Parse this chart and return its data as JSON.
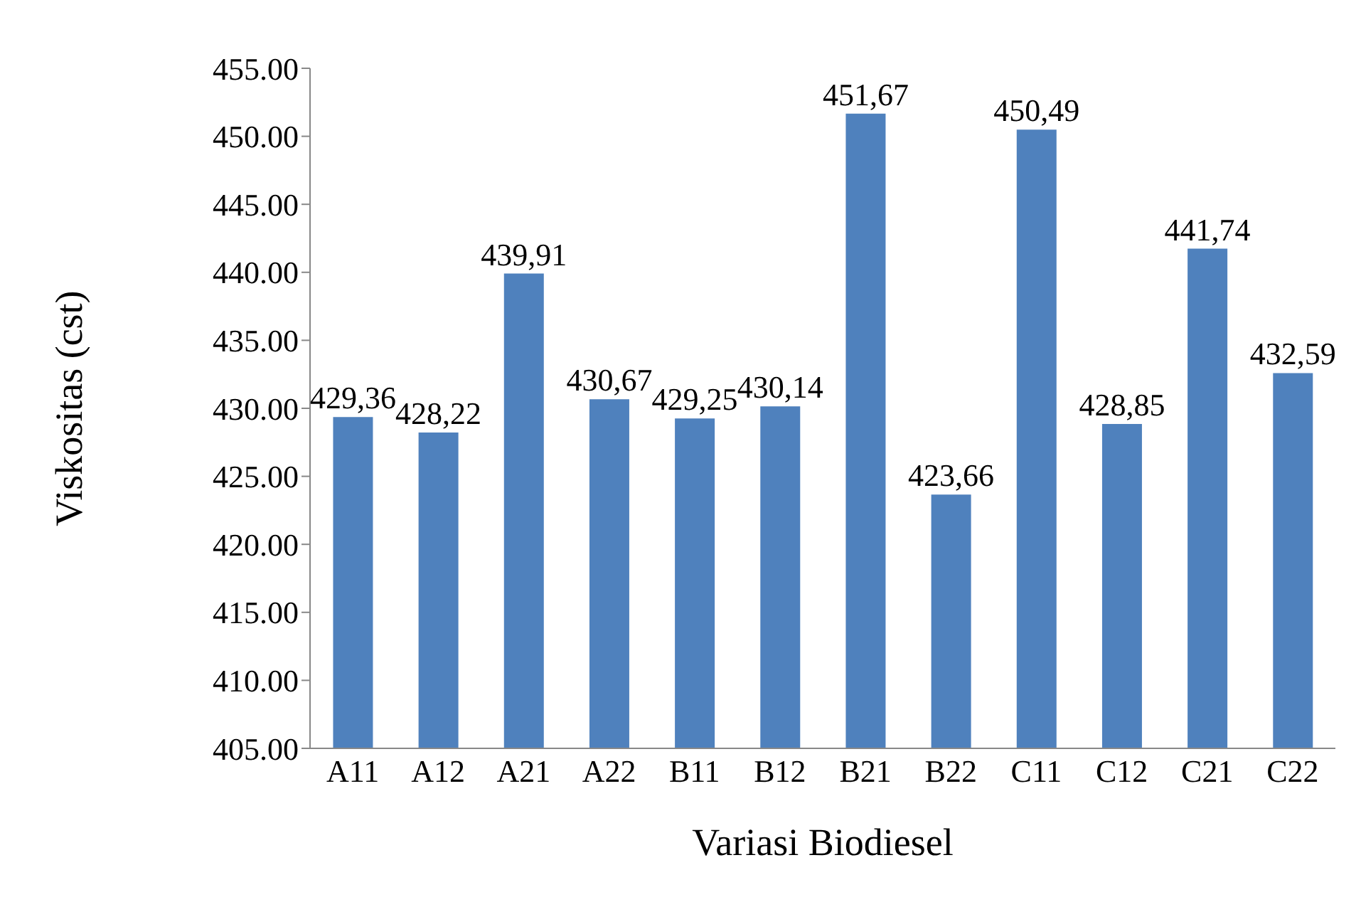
{
  "chart_data": {
    "type": "bar",
    "xlabel": "Variasi Biodiesel",
    "ylabel": "Viskositas (cst)",
    "categories": [
      "A11",
      "A12",
      "A21",
      "A22",
      "B11",
      "B12",
      "B21",
      "B22",
      "C11",
      "C12",
      "C21",
      "C22"
    ],
    "values": [
      429.36,
      428.22,
      439.91,
      430.67,
      429.25,
      430.14,
      451.67,
      423.66,
      450.49,
      428.85,
      441.74,
      432.59
    ],
    "value_labels": [
      "429,36",
      "428,22",
      "439,91",
      "430,67",
      "429,25",
      "430,14",
      "451,67",
      "423,66",
      "450,49",
      "428,85",
      "441,74",
      "432,59"
    ],
    "color": "#4f81bd",
    "ylim": [
      405,
      455
    ],
    "yticks": [
      {
        "value": 405,
        "label": "405.00"
      },
      {
        "value": 410,
        "label": "410.00"
      },
      {
        "value": 415,
        "label": "415.00"
      },
      {
        "value": 420,
        "label": "420.00"
      },
      {
        "value": 425,
        "label": "425.00"
      },
      {
        "value": 430,
        "label": "430.00"
      },
      {
        "value": 435,
        "label": "435.00"
      },
      {
        "value": 440,
        "label": "440.00"
      },
      {
        "value": 445,
        "label": "445.00"
      },
      {
        "value": 450,
        "label": "450.00"
      },
      {
        "value": 455,
        "label": "455.00"
      }
    ],
    "grid": false,
    "legend": false
  }
}
